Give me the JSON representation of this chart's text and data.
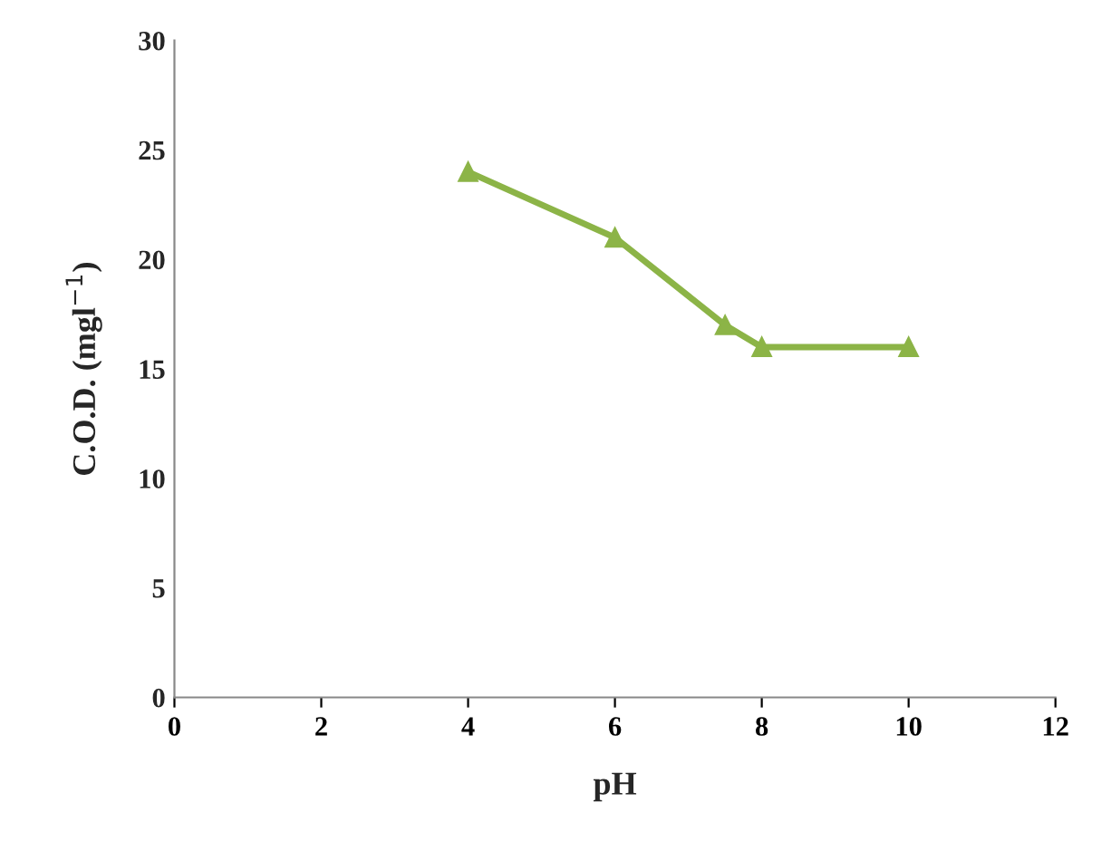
{
  "chart_data": {
    "type": "line",
    "xlabel": "pH",
    "ylabel": "C.O.D. (mgl$^{−1}$)",
    "series": [
      {
        "color": "#8cb447",
        "x": [
          4,
          6,
          7.5,
          8,
          10
        ],
        "values": [
          24,
          21,
          17,
          16,
          16
        ]
      }
    ],
    "xlim": [
      0,
      12
    ],
    "xticks": [
      0,
      2,
      4,
      6,
      8,
      10,
      12
    ],
    "ylim": [
      0,
      30
    ],
    "yticks": [
      0,
      5,
      10,
      15,
      20,
      25,
      30
    ],
    "marker": "triangle",
    "line_style": "solid",
    "grid": false,
    "legend": false
  }
}
